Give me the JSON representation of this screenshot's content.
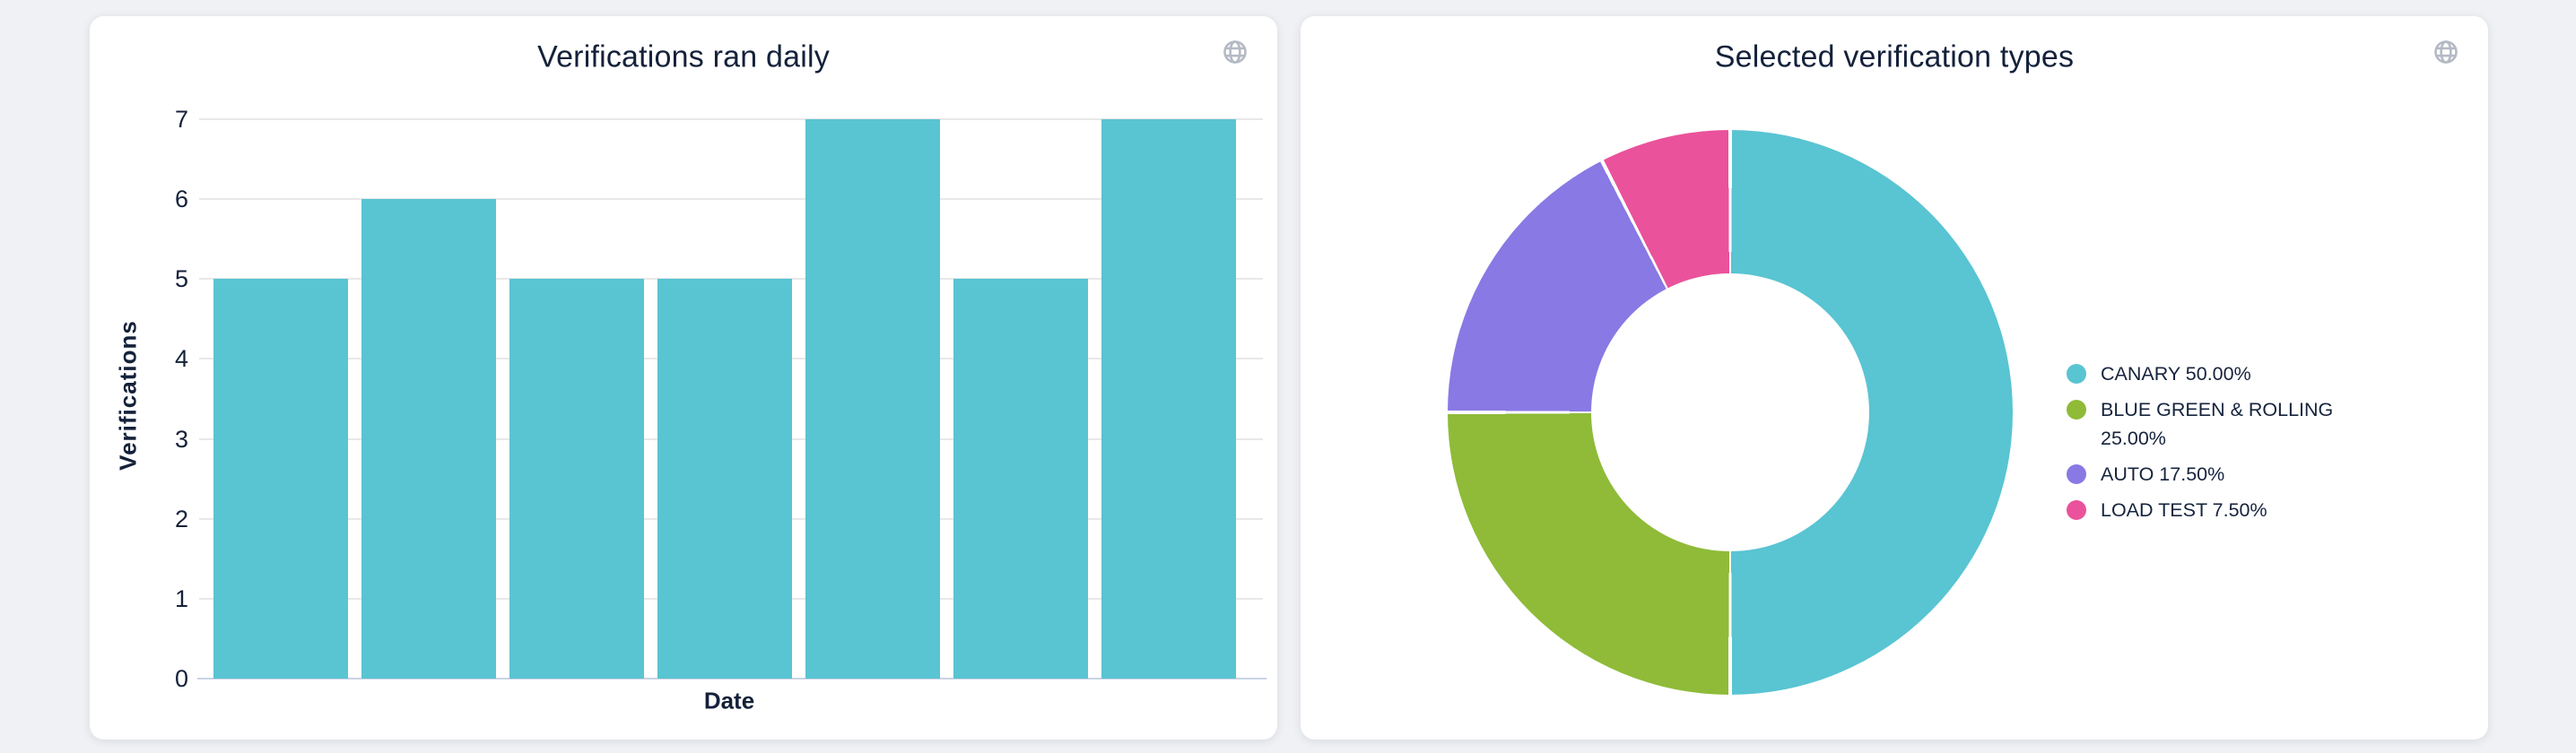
{
  "page": {
    "background": "#eff1f4",
    "text_color": "#15233d",
    "card_background": "#ffffff"
  },
  "cards": {
    "daily": {
      "action_icon": "globe-icon"
    },
    "types": {
      "action_icon": "globe-icon"
    }
  },
  "chart_data": [
    {
      "type": "bar",
      "title": "Verifications ran daily",
      "xlabel": "Date",
      "ylabel": "Verifications",
      "categories": [
        "",
        "",
        "",
        "",
        "",
        "",
        ""
      ],
      "values": [
        5,
        6,
        5,
        5,
        7,
        5,
        7
      ],
      "ylim": [
        0,
        7
      ],
      "yticks": [
        0,
        1,
        2,
        3,
        4,
        5,
        6,
        7
      ],
      "grid": true,
      "x_tick_labels_visible": false,
      "bar_color": "#59c4d2",
      "gridline_color": "#e8e8e8",
      "baseline_color": "#c9d3e4"
    },
    {
      "type": "donut",
      "title": "Selected verification types",
      "legend_position": "right",
      "series": [
        {
          "name": "CANARY",
          "value": 50.0,
          "color": "#59c4d2",
          "legend_label": "CANARY 50.00%"
        },
        {
          "name": "BLUE GREEN & ROLLING",
          "value": 25.0,
          "color": "#8fbb38",
          "legend_label": "BLUE GREEN & ROLLING 25.00%"
        },
        {
          "name": "AUTO",
          "value": 17.5,
          "color": "#8879e4",
          "legend_label": "AUTO 17.50%"
        },
        {
          "name": "LOAD TEST",
          "value": 7.5,
          "color": "#ea529b",
          "legend_label": "LOAD TEST 7.50%"
        }
      ]
    }
  ]
}
